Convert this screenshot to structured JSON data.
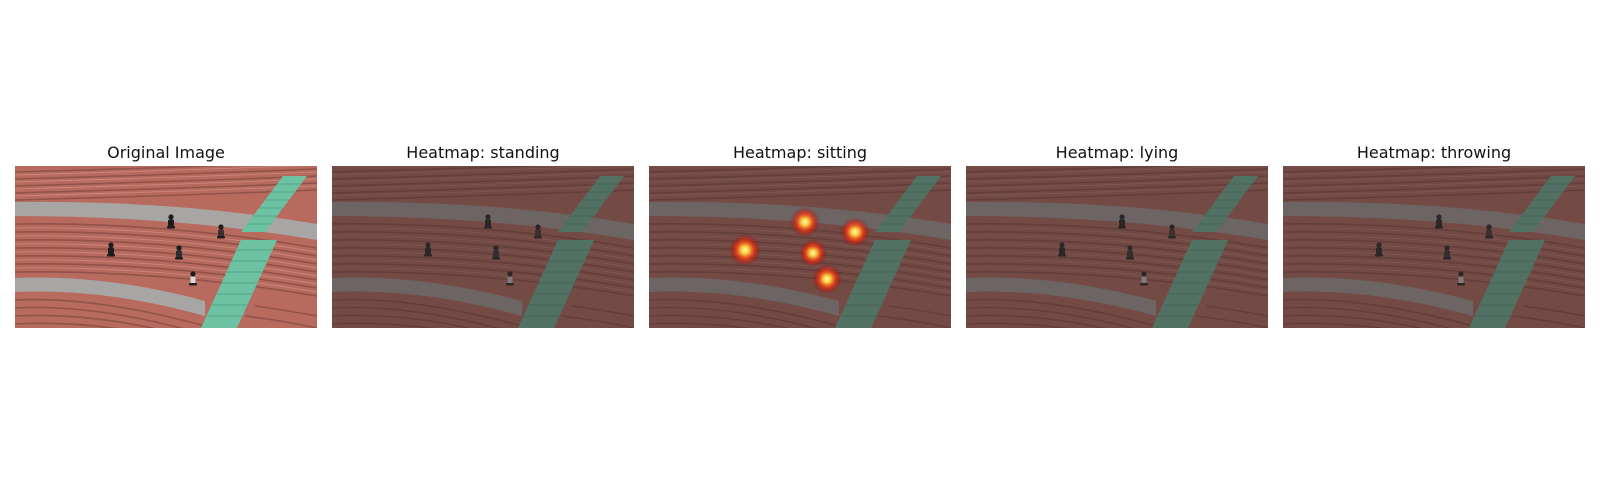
{
  "panels": [
    {
      "title": "Original Image",
      "heatmap": false,
      "people": 5
    },
    {
      "title": "Heatmap: standing",
      "heatmap": true,
      "hotspots": []
    },
    {
      "title": "Heatmap: sitting",
      "heatmap": true,
      "hotspots": [
        "person-left",
        "person-top-center",
        "person-right",
        "person-center",
        "person-bottom"
      ]
    },
    {
      "title": "Heatmap: lying",
      "heatmap": true,
      "hotspots": []
    },
    {
      "title": "Heatmap: throwing",
      "heatmap": true,
      "hotspots": []
    }
  ],
  "colors": {
    "bleacher_red": "#b86a5e",
    "bleacher_dark": "#9a564c",
    "walkway_gray": "#a8a6a4",
    "stairs_green": "#6cc2a2",
    "heatmap_overlay": "#3d3030",
    "heat_hot": "#fff080",
    "heat_warm": "#ff3010"
  },
  "icons": [
    "person-icon"
  ]
}
